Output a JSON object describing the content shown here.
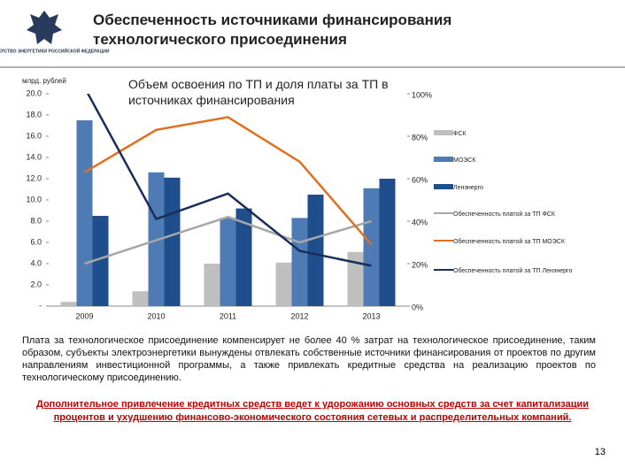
{
  "header": {
    "ministry": "МИНИСТЕРСТВО ЭНЕРГЕТИКИ РОССИЙСКОЙ ФЕДЕРАЦИИ",
    "title": "Обеспеченность источниками финансирования технологического присоединения"
  },
  "chart_data": {
    "type": "bar",
    "title": "Объем освоения по ТП и доля платы за ТП в источниках финансирования",
    "y_label": "млрд. рублей",
    "categories": [
      "2009",
      "2010",
      "2011",
      "2012",
      "2013"
    ],
    "series": [
      {
        "name": "ФСК",
        "type": "bar",
        "color": "#bfbfbf",
        "values": [
          0.4,
          1.4,
          4.0,
          4.1,
          5.1
        ]
      },
      {
        "name": "МОЭСК",
        "type": "bar",
        "color": "#4f7bb5",
        "values": [
          17.5,
          12.6,
          8.3,
          8.3,
          11.1
        ]
      },
      {
        "name": "Ленэнерго",
        "type": "bar",
        "color": "#1f4e8c",
        "values": [
          8.5,
          12.1,
          9.2,
          10.5,
          12.0
        ]
      },
      {
        "name": "Обеспеченность платой за ТП ФСК",
        "type": "line",
        "axis": "y2",
        "color": "#a6a6a6",
        "values": [
          20,
          31,
          42,
          30,
          40
        ]
      },
      {
        "name": "Обеспеченность платой за ТП МОЭСК",
        "type": "line",
        "axis": "y2",
        "color": "#e07020",
        "values": [
          63,
          83,
          89,
          68,
          29
        ]
      },
      {
        "name": "Обеспеченность платой за ТП Ленэнерго",
        "type": "line",
        "axis": "y2",
        "color": "#1a2e5a",
        "values": [
          103,
          41,
          53,
          26,
          19
        ]
      }
    ],
    "ylim": [
      0,
      20
    ],
    "yticks": [
      {
        "value": 0,
        "label": "-"
      },
      {
        "value": 2,
        "label": "2.0"
      },
      {
        "value": 4,
        "label": "4.0"
      },
      {
        "value": 6,
        "label": "6.0"
      },
      {
        "value": 8,
        "label": "8.0"
      },
      {
        "value": 10,
        "label": "10.0"
      },
      {
        "value": 12,
        "label": "12.0"
      },
      {
        "value": 14,
        "label": "14.0"
      },
      {
        "value": 16,
        "label": "16.0"
      },
      {
        "value": 18,
        "label": "18.0"
      },
      {
        "value": 20,
        "label": "20.0"
      }
    ],
    "y2lim": [
      0,
      100
    ],
    "y2ticks": [
      {
        "value": 0,
        "label": "0%"
      },
      {
        "value": 20,
        "label": "20%"
      },
      {
        "value": 40,
        "label": "40%"
      },
      {
        "value": 60,
        "label": "60%"
      },
      {
        "value": 80,
        "label": "80%"
      },
      {
        "value": 100,
        "label": "100%"
      }
    ],
    "grid": false,
    "legend": "right"
  },
  "body_text": "Плата за технологическое присоединение компенсирует не более 40 % затрат на технологическое присоединение, таким образом, субъекты электроэнергетики вынуждены отвлекать собственные источники финансирования от проектов по другим направлениям инвестиционной программы, а также привлекать кредитные средства на реализацию проектов по технологическому присоединению.",
  "conclusion": "Дополнительное привлечение кредитных средств ведет к удорожанию основных средств за счет капитализации процентов и ухудшению финансово-экономического состояния сетевых и распределительных компаний.",
  "page_number": "13"
}
